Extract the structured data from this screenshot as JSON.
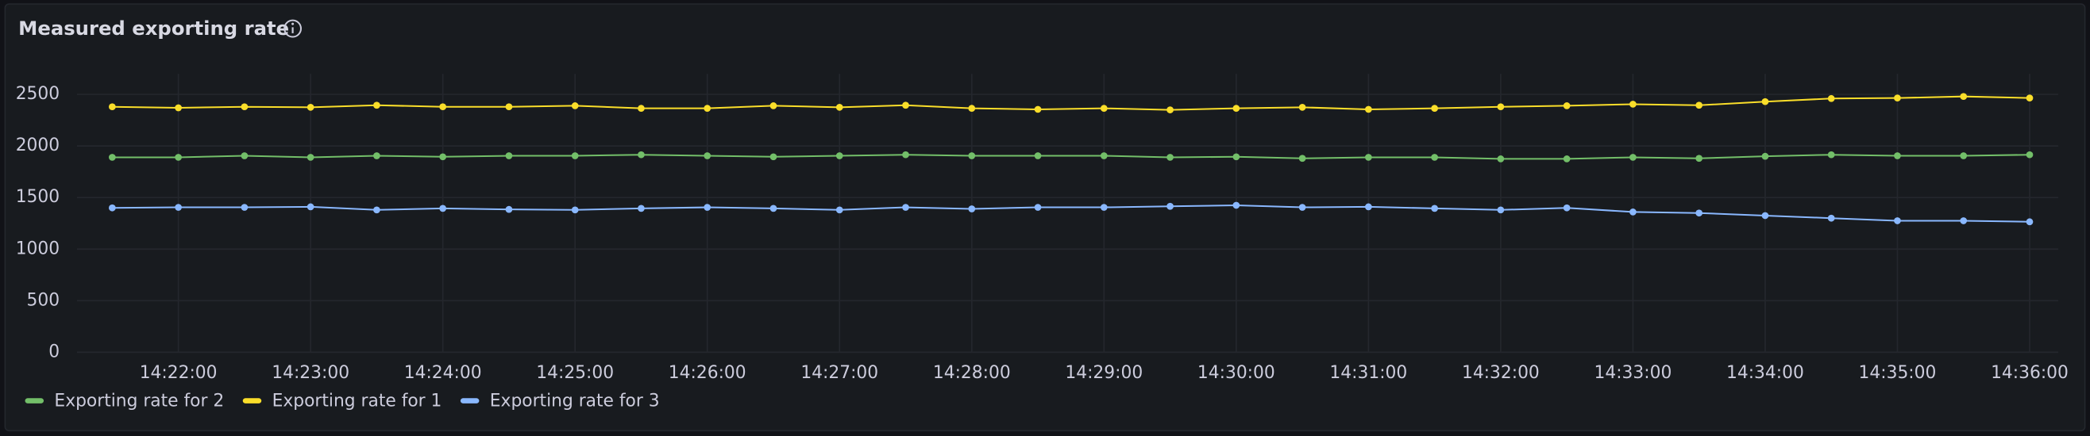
{
  "chart_data": {
    "type": "line",
    "title": "Measured exporting rate",
    "x": [
      "14:21:30",
      "14:22:00",
      "14:22:30",
      "14:23:00",
      "14:23:30",
      "14:24:00",
      "14:24:30",
      "14:25:00",
      "14:25:30",
      "14:26:00",
      "14:26:30",
      "14:27:00",
      "14:27:30",
      "14:28:00",
      "14:28:30",
      "14:29:00",
      "14:29:30",
      "14:30:00",
      "14:30:30",
      "14:31:00",
      "14:31:30",
      "14:32:00",
      "14:32:30",
      "14:33:00",
      "14:33:30",
      "14:34:00",
      "14:34:30",
      "14:35:00",
      "14:35:30",
      "14:36:00"
    ],
    "xlim": [
      "14:21:14",
      "14:36:13"
    ],
    "xticks": [
      "14:22:00",
      "14:23:00",
      "14:24:00",
      "14:25:00",
      "14:26:00",
      "14:27:00",
      "14:28:00",
      "14:29:00",
      "14:30:00",
      "14:31:00",
      "14:32:00",
      "14:33:00",
      "14:34:00",
      "14:35:00",
      "14:36:00"
    ],
    "ylim": [
      0,
      2700
    ],
    "yticks": [
      0,
      500,
      1000,
      1500,
      2000,
      2500
    ],
    "grid": true,
    "series": [
      {
        "name": "Exporting rate for 2",
        "color": "#73bf69",
        "values": [
          1890,
          1890,
          1905,
          1890,
          1905,
          1895,
          1905,
          1905,
          1915,
          1905,
          1895,
          1905,
          1915,
          1905,
          1905,
          1905,
          1890,
          1895,
          1880,
          1890,
          1890,
          1875,
          1875,
          1890,
          1880,
          1900,
          1915,
          1905,
          1905,
          1915
        ]
      },
      {
        "name": "Exporting rate for 1",
        "color": "#fade2a",
        "values": [
          2380,
          2370,
          2380,
          2375,
          2395,
          2380,
          2380,
          2390,
          2365,
          2365,
          2390,
          2375,
          2395,
          2365,
          2355,
          2365,
          2350,
          2365,
          2375,
          2355,
          2365,
          2380,
          2390,
          2405,
          2395,
          2430,
          2460,
          2465,
          2480,
          2465
        ]
      },
      {
        "name": "Exporting rate for 3",
        "color": "#8ab8ff",
        "values": [
          1400,
          1405,
          1405,
          1410,
          1380,
          1395,
          1385,
          1380,
          1395,
          1405,
          1395,
          1380,
          1405,
          1390,
          1405,
          1405,
          1415,
          1425,
          1405,
          1410,
          1395,
          1380,
          1400,
          1360,
          1350,
          1325,
          1300,
          1275,
          1275,
          1265
        ]
      }
    ]
  }
}
